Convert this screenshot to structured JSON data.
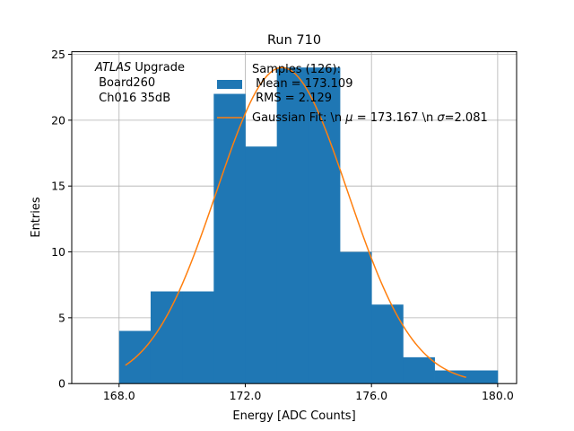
{
  "chart_data": {
    "type": "bar",
    "title": "Run 710",
    "xlabel": "Energy [ADC Counts]",
    "ylabel": "Entries",
    "xlim": [
      166.5,
      180.6
    ],
    "ylim": [
      0,
      25.2
    ],
    "xticks": [
      168.0,
      172.0,
      176.0,
      180.0
    ],
    "xtick_labels": [
      "168.0",
      "172.0",
      "176.0",
      "180.0"
    ],
    "yticks": [
      0,
      5,
      10,
      15,
      20,
      25
    ],
    "ytick_labels": [
      "0",
      "5",
      "10",
      "15",
      "20",
      "25"
    ],
    "grid": true,
    "annotation": {
      "atlas": "ATLAS",
      "upgrade": " Upgrade",
      "board": " Board260",
      "channel": " Ch016 35dB"
    },
    "histogram": {
      "bins": [
        {
          "x0": 168,
          "x1": 169,
          "count": 4
        },
        {
          "x0": 169,
          "x1": 170,
          "count": 7
        },
        {
          "x0": 170,
          "x1": 171,
          "count": 7
        },
        {
          "x0": 171,
          "x1": 172,
          "count": 22
        },
        {
          "x0": 172,
          "x1": 173,
          "count": 18
        },
        {
          "x0": 173,
          "x1": 174,
          "count": 24
        },
        {
          "x0": 174,
          "x1": 175,
          "count": 24
        },
        {
          "x0": 175,
          "x1": 176,
          "count": 10
        },
        {
          "x0": 176,
          "x1": 177,
          "count": 6
        },
        {
          "x0": 177,
          "x1": 178,
          "count": 2
        },
        {
          "x0": 178,
          "x1": 179,
          "count": 1
        },
        {
          "x0": 179,
          "x1": 180,
          "count": 1
        }
      ],
      "color": "#1f77b4"
    },
    "fit": {
      "mu": 173.167,
      "sigma": 2.081,
      "amplitude": 24.0,
      "x_range": [
        168.2,
        179.0
      ],
      "color": "#ff7f0e"
    },
    "legend": {
      "placement": "upper-center",
      "hist_lines": [
        "Samples (126):",
        " Mean = 173.109",
        " RMS = 2.129"
      ],
      "fit_label_prefix": "Gaussian Fit: \\n ",
      "fit_mu_symbol": "μ",
      "fit_mu_text": " = 173.167 \\n ",
      "fit_sigma_symbol": "σ",
      "fit_sigma_text": "=2.081"
    }
  }
}
